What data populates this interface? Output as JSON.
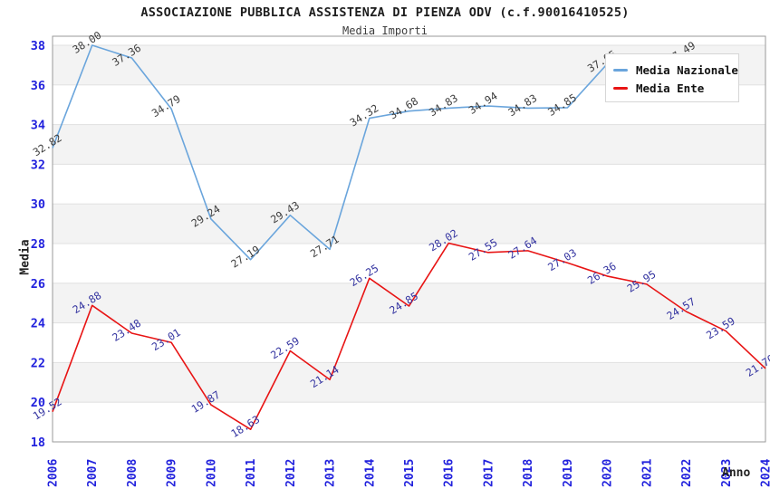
{
  "title": "ASSOCIAZIONE PUBBLICA ASSISTENZA DI PIENZA ODV (c.f.90016410525)",
  "subtitle": "Media Importi",
  "chart_data": {
    "type": "line",
    "title": "ASSOCIAZIONE PUBBLICA ASSISTENZA DI PIENZA ODV (c.f.90016410525)",
    "subtitle": "Media Importi",
    "xlabel": "Anno",
    "ylabel": "Media",
    "x": [
      2006,
      2007,
      2008,
      2009,
      2010,
      2011,
      2012,
      2013,
      2014,
      2015,
      2016,
      2017,
      2018,
      2019,
      2020,
      2021,
      2022,
      2023,
      2024
    ],
    "ylim": [
      18,
      38
    ],
    "y_ticks": [
      18,
      20,
      22,
      24,
      26,
      28,
      30,
      32,
      34,
      36,
      38
    ],
    "grid": "alternating horizontal gray bands every 2 units",
    "legend_position": "top-right overlay",
    "series": [
      {
        "name": "Media Nazionale",
        "color": "#6aa5dc",
        "label_color": "#3d3d3d",
        "x": [
          2006,
          2007,
          2008,
          2009,
          2010,
          2011,
          2012,
          2013,
          2014,
          2015,
          2016,
          2017,
          2018,
          2019,
          2020,
          2021,
          2022
        ],
        "values": [
          32.82,
          38.0,
          37.36,
          34.79,
          29.24,
          27.19,
          29.43,
          27.71,
          34.32,
          34.68,
          34.83,
          34.94,
          34.83,
          34.85,
          37.05,
          null,
          37.49
        ],
        "labels": [
          "32.82",
          "38.00",
          "37.36",
          "34.79",
          "29.24",
          "27.19",
          "29.43",
          "27.71",
          "34.32",
          "34.68",
          "34.83",
          "34.94",
          "34.83",
          "34.85",
          "37.05",
          null,
          "37.49"
        ]
      },
      {
        "name": "Media Ente",
        "color": "#e81414",
        "label_color": "#3333a0",
        "x": [
          2006,
          2007,
          2008,
          2009,
          2010,
          2011,
          2012,
          2013,
          2014,
          2015,
          2016,
          2017,
          2018,
          2019,
          2020,
          2021,
          2022,
          2023,
          2024
        ],
        "values": [
          19.52,
          24.88,
          23.48,
          23.01,
          19.87,
          18.63,
          22.59,
          21.14,
          26.25,
          24.85,
          28.02,
          27.55,
          27.64,
          27.03,
          26.36,
          25.95,
          24.57,
          23.59,
          21.7
        ],
        "labels": [
          "19.52",
          "24.88",
          "23.48",
          "23.01",
          "19.87",
          "18.63",
          "22.59",
          "21.14",
          "26.25",
          "24.85",
          "28.02",
          "27.55",
          "27.64",
          "27.03",
          "26.36",
          "25.95",
          "24.57",
          "23.59",
          "21.70"
        ]
      }
    ]
  },
  "colors": {
    "tick_label": "#2222dd",
    "band_fill": "#f3f3f3",
    "band_edge": "#e0e0e0",
    "frame": "#9a9a9a",
    "axis_title": "#222222",
    "legend_border": "#d6d6d6"
  }
}
